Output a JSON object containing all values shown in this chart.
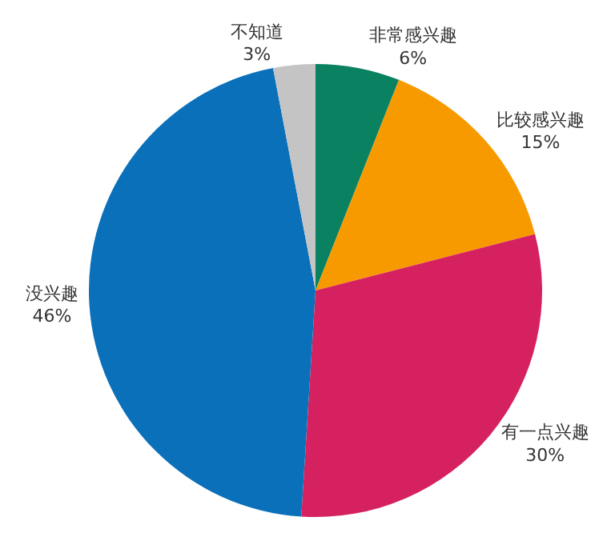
{
  "chart_data": {
    "type": "pie",
    "categories": [
      "非常感兴趣",
      "比较感兴趣",
      "有一点兴趣",
      "没兴趣",
      "不知道"
    ],
    "values": [
      6,
      15,
      30,
      46,
      3
    ],
    "value_labels": [
      "6%",
      "15%",
      "30%",
      "46%",
      "3%"
    ],
    "colors": [
      "#0a8160",
      "#f79a00",
      "#d62160",
      "#0a70ba",
      "#c4c4c4"
    ]
  }
}
